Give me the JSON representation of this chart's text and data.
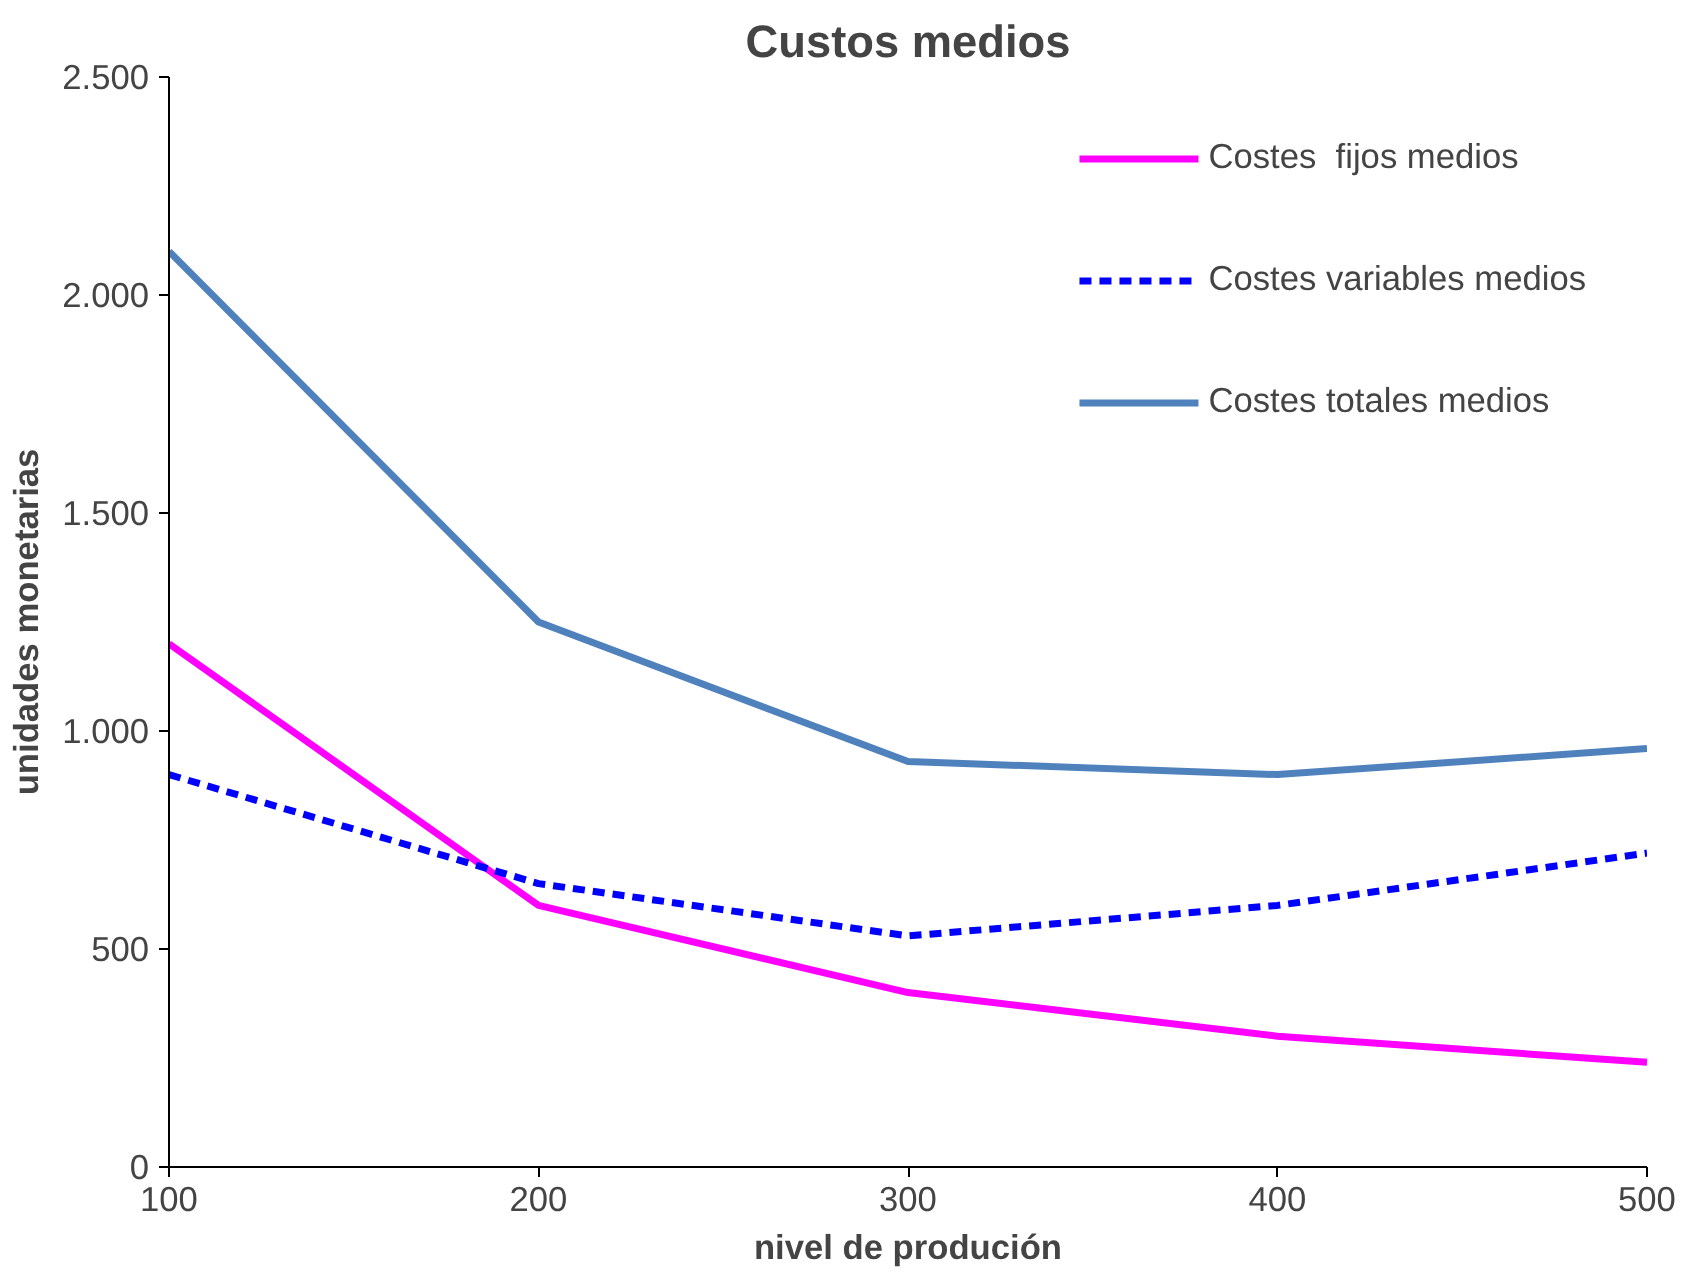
{
  "chart_data": {
    "type": "line",
    "title": "Custos medios",
    "xlabel": "nivel de produción",
    "ylabel": "unidades monetarias",
    "x": [
      100,
      200,
      300,
      400,
      500
    ],
    "series": [
      {
        "name": "Costes  fijos medios",
        "color": "#ff00ff",
        "values": [
          1200,
          600,
          400,
          300,
          240
        ],
        "line_style": "solid"
      },
      {
        "name": "Costes variables medios",
        "color": "#0000ff",
        "values": [
          900,
          650,
          530,
          600,
          720
        ],
        "line_style": "dashed"
      },
      {
        "name": "Costes totales medios",
        "color": "#4f81bd",
        "values": [
          2100,
          1250,
          930,
          900,
          960
        ],
        "line_style": "solid"
      }
    ],
    "xlim": [
      100,
      500
    ],
    "xticks": [
      100,
      200,
      300,
      400,
      500
    ],
    "ylim": [
      0,
      2500
    ],
    "yticks": [
      0,
      {
        "value": 500,
        "label": "500"
      },
      {
        "value": 1000,
        "label": "1.000"
      },
      {
        "value": 1500,
        "label": "1.500"
      },
      {
        "value": 2000,
        "label": "2.000"
      },
      {
        "value": 2500,
        "label": "2.500"
      }
    ],
    "grid": false,
    "legend": "top right",
    "marker": "none"
  }
}
